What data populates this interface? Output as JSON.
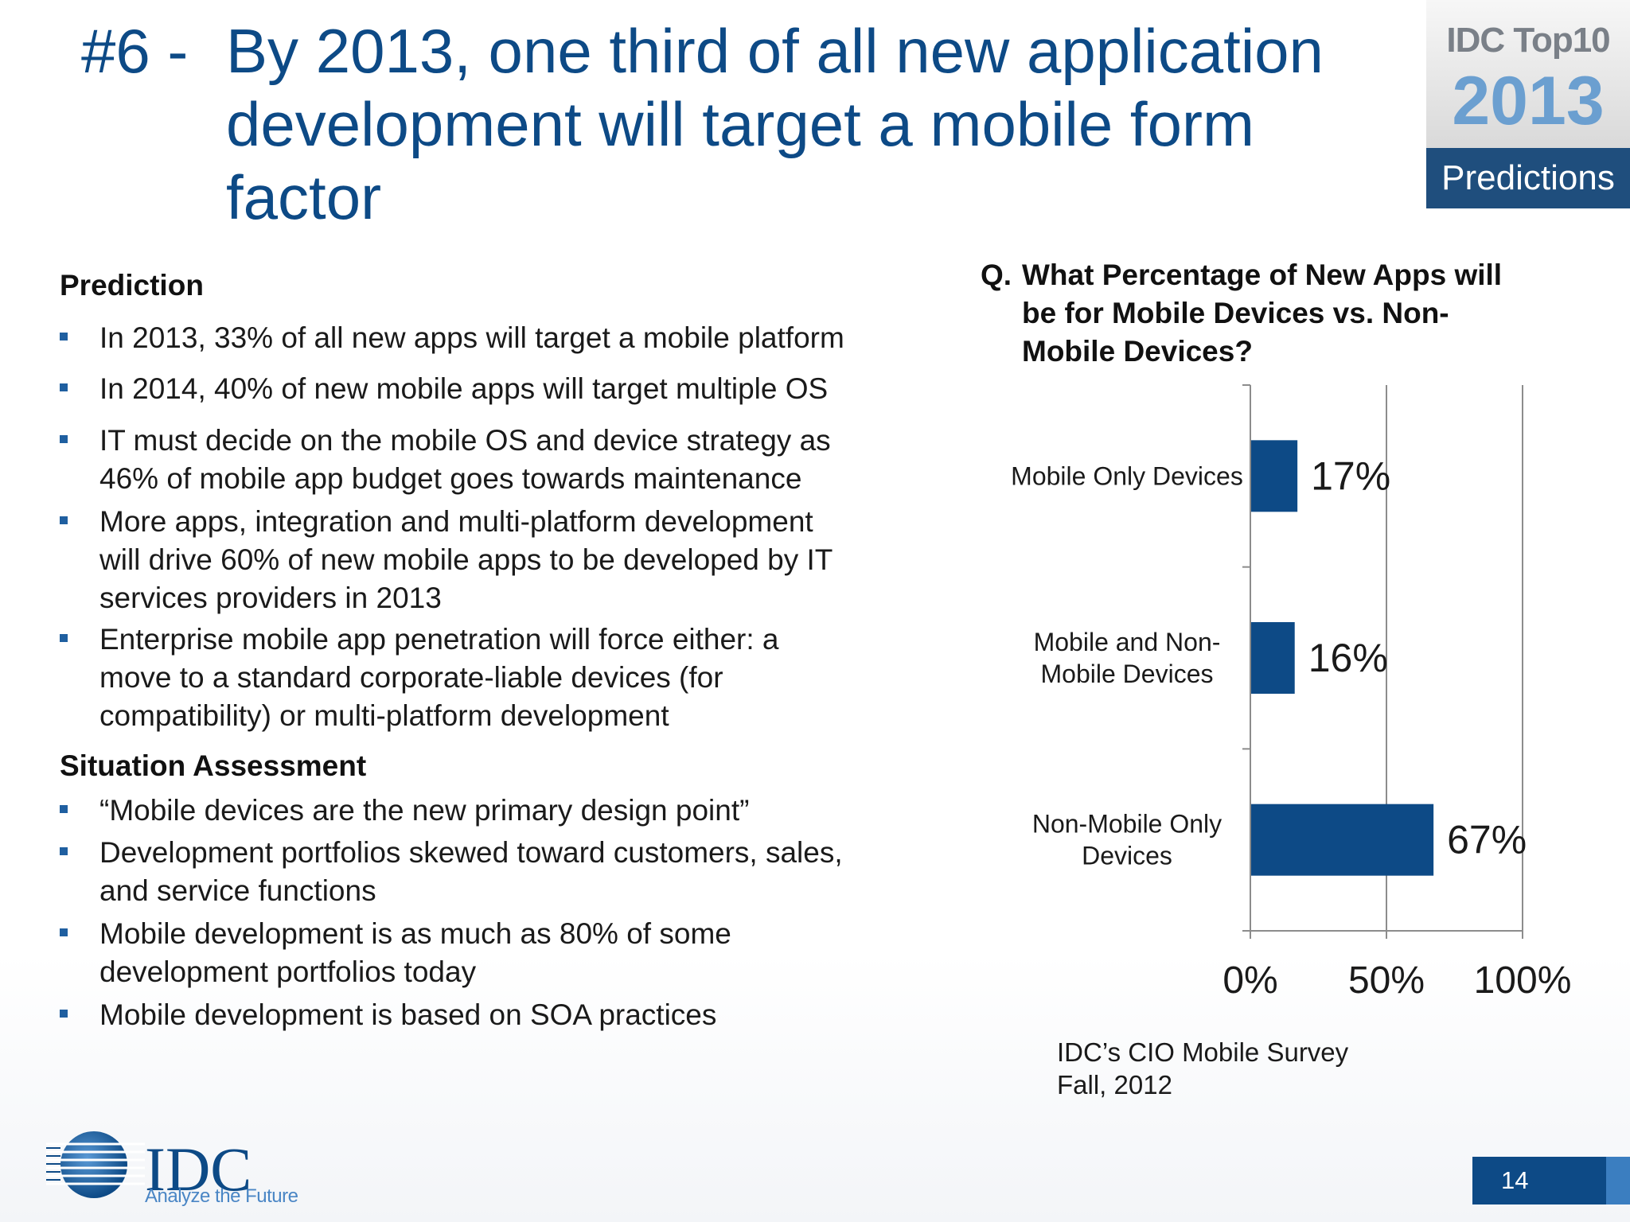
{
  "title": {
    "number": "#6 -",
    "lines": [
      "By 2013, one third of all new application",
      "development will target a mobile form",
      "factor"
    ]
  },
  "badge": {
    "line1": "IDC Top10",
    "year": "2013",
    "label": "Predictions"
  },
  "prediction": {
    "heading": "Prediction",
    "bullets": [
      {
        "lines": [
          "In 2013, 33% of all new apps will target a mobile platform"
        ]
      },
      {
        "lines": [
          "In 2014, 40% of new mobile apps will target multiple OS"
        ]
      },
      {
        "lines": [
          "IT must decide on the mobile OS and device strategy as",
          "46% of mobile app budget goes towards maintenance"
        ]
      },
      {
        "lines": [
          "More apps, integration and multi-platform development",
          "will drive 60% of new mobile apps to be developed by IT",
          "services providers in 2013"
        ]
      },
      {
        "lines": [
          "Enterprise mobile app penetration will force either: a",
          "move to a standard corporate-liable devices (for",
          "compatibility) or multi-platform development"
        ]
      }
    ]
  },
  "situation": {
    "heading": "Situation Assessment",
    "bullets": [
      {
        "lines": [
          "“Mobile devices are the new primary design point”"
        ]
      },
      {
        "lines": [
          "Development portfolios skewed toward customers, sales,",
          "and service functions"
        ]
      },
      {
        "lines": [
          "Mobile development is as much as 80% of some",
          "development portfolios today"
        ]
      },
      {
        "lines": [
          "Mobile development is based on SOA practices"
        ]
      }
    ]
  },
  "chart_question": {
    "prefix": "Q.",
    "lines": [
      "What Percentage of New Apps will",
      "be for Mobile Devices vs. Non-",
      "Mobile Devices?"
    ]
  },
  "chart_data": {
    "type": "bar",
    "orientation": "horizontal",
    "categories": [
      [
        "Mobile Only Devices"
      ],
      [
        "Mobile and Non-",
        "Mobile Devices"
      ],
      [
        "Non-Mobile Only",
        "Devices"
      ]
    ],
    "values": [
      17,
      16,
      67
    ],
    "data_labels": [
      "17%",
      "16%",
      "67%"
    ],
    "xlim": [
      0,
      100
    ],
    "x_ticks": [
      0,
      50,
      100
    ],
    "x_tick_labels": [
      "0%",
      "50%",
      "100%"
    ],
    "grid": "vertical",
    "bar_color": "#0d4a86",
    "title": "",
    "xlabel": "",
    "ylabel": ""
  },
  "source": {
    "lines": [
      "IDC’s CIO Mobile Survey",
      "Fall, 2012"
    ]
  },
  "footer": {
    "logo_text": "IDC",
    "tagline": "Analyze the Future",
    "page_number": "14"
  },
  "colors": {
    "title": "#0d4a86",
    "accent": "#1f4e7d",
    "bar": "#0d4a86"
  }
}
